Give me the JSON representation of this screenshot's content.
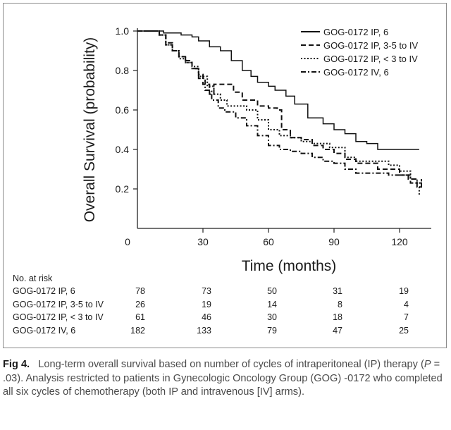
{
  "chart_data": {
    "type": "line",
    "xlabel": "Time (months)",
    "ylabel": "Overall Survival (probability)",
    "xlim": [
      0,
      132
    ],
    "ylim": [
      0,
      1.0
    ],
    "x_ticks": [
      "0",
      "30",
      "60",
      "90",
      "120"
    ],
    "y_ticks": [
      "0.2",
      "0.4",
      "0.6",
      "0.8",
      "1.0"
    ],
    "legend_position": "top-right",
    "series": [
      {
        "name": "GOG-0172 IP, 6",
        "style": "solid",
        "points": [
          [
            0,
            1.0
          ],
          [
            10,
            1.0
          ],
          [
            12,
            0.99
          ],
          [
            18,
            0.99
          ],
          [
            20,
            0.98
          ],
          [
            25,
            0.97
          ],
          [
            28,
            0.95
          ],
          [
            33,
            0.92
          ],
          [
            38,
            0.9
          ],
          [
            43,
            0.85
          ],
          [
            48,
            0.8
          ],
          [
            52,
            0.77
          ],
          [
            55,
            0.74
          ],
          [
            60,
            0.72
          ],
          [
            63,
            0.7
          ],
          [
            68,
            0.67
          ],
          [
            72,
            0.63
          ],
          [
            78,
            0.56
          ],
          [
            85,
            0.53
          ],
          [
            90,
            0.5
          ],
          [
            95,
            0.48
          ],
          [
            100,
            0.44
          ],
          [
            105,
            0.43
          ],
          [
            110,
            0.4
          ],
          [
            120,
            0.4
          ],
          [
            129,
            0.4
          ]
        ]
      },
      {
        "name": "GOG-0172 IP, 3-5 to IV",
        "style": "dashed",
        "points": [
          [
            0,
            1.0
          ],
          [
            10,
            0.98
          ],
          [
            13,
            0.93
          ],
          [
            16,
            0.9
          ],
          [
            19,
            0.87
          ],
          [
            22,
            0.85
          ],
          [
            25,
            0.81
          ],
          [
            28,
            0.78
          ],
          [
            30,
            0.73
          ],
          [
            33,
            0.68
          ],
          [
            35,
            0.73
          ],
          [
            42,
            0.73
          ],
          [
            44,
            0.69
          ],
          [
            48,
            0.65
          ],
          [
            52,
            0.65
          ],
          [
            55,
            0.62
          ],
          [
            60,
            0.61
          ],
          [
            64,
            0.6
          ],
          [
            66,
            0.5
          ],
          [
            70,
            0.46
          ],
          [
            75,
            0.45
          ],
          [
            80,
            0.42
          ],
          [
            85,
            0.4
          ],
          [
            90,
            0.38
          ],
          [
            95,
            0.35
          ],
          [
            100,
            0.33
          ],
          [
            110,
            0.3
          ],
          [
            120,
            0.27
          ],
          [
            124,
            0.25
          ],
          [
            128,
            0.21
          ],
          [
            130,
            0.25
          ]
        ]
      },
      {
        "name": "GOG-0172 IP, < 3 to IV",
        "style": "dotted",
        "points": [
          [
            0,
            1.0
          ],
          [
            10,
            0.98
          ],
          [
            13,
            0.93
          ],
          [
            16,
            0.9
          ],
          [
            19,
            0.86
          ],
          [
            22,
            0.84
          ],
          [
            25,
            0.82
          ],
          [
            28,
            0.77
          ],
          [
            32,
            0.72
          ],
          [
            35,
            0.68
          ],
          [
            38,
            0.65
          ],
          [
            41,
            0.62
          ],
          [
            45,
            0.62
          ],
          [
            50,
            0.6
          ],
          [
            55,
            0.55
          ],
          [
            60,
            0.5
          ],
          [
            65,
            0.47
          ],
          [
            70,
            0.46
          ],
          [
            75,
            0.44
          ],
          [
            80,
            0.43
          ],
          [
            88,
            0.41
          ],
          [
            95,
            0.36
          ],
          [
            100,
            0.34
          ],
          [
            110,
            0.34
          ],
          [
            115,
            0.32
          ],
          [
            120,
            0.29
          ],
          [
            125,
            0.25
          ],
          [
            128,
            0.21
          ],
          [
            129,
            0.17
          ]
        ]
      },
      {
        "name": "GOG-0172 IV, 6",
        "style": "dashdot",
        "points": [
          [
            0,
            1.0
          ],
          [
            10,
            0.98
          ],
          [
            13,
            0.94
          ],
          [
            16,
            0.9
          ],
          [
            19,
            0.87
          ],
          [
            22,
            0.84
          ],
          [
            25,
            0.81
          ],
          [
            28,
            0.76
          ],
          [
            31,
            0.7
          ],
          [
            34,
            0.65
          ],
          [
            37,
            0.61
          ],
          [
            40,
            0.59
          ],
          [
            45,
            0.56
          ],
          [
            50,
            0.52
          ],
          [
            55,
            0.47
          ],
          [
            60,
            0.42
          ],
          [
            65,
            0.4
          ],
          [
            70,
            0.39
          ],
          [
            75,
            0.38
          ],
          [
            80,
            0.36
          ],
          [
            85,
            0.34
          ],
          [
            90,
            0.33
          ],
          [
            95,
            0.3
          ],
          [
            100,
            0.28
          ],
          [
            105,
            0.28
          ],
          [
            110,
            0.28
          ],
          [
            115,
            0.27
          ],
          [
            120,
            0.27
          ],
          [
            125,
            0.23
          ],
          [
            130,
            0.22
          ]
        ]
      }
    ]
  },
  "risk_table": {
    "title": "No. at risk",
    "time_points": [
      "0",
      "30",
      "60",
      "90",
      "120"
    ],
    "rows": [
      {
        "label": "GOG-0172 IP, 6",
        "counts": [
          "78",
          "73",
          "50",
          "31",
          "19"
        ]
      },
      {
        "label": "GOG-0172 IP, 3-5 to IV",
        "counts": [
          "26",
          "19",
          "14",
          "8",
          "4"
        ]
      },
      {
        "label": "GOG-0172 IP, < 3 to IV",
        "counts": [
          "61",
          "46",
          "30",
          "18",
          "7"
        ]
      },
      {
        "label": "GOG-0172 IV, 6",
        "counts": [
          "182",
          "133",
          "79",
          "47",
          "25"
        ]
      }
    ]
  },
  "caption": {
    "label": "Fig 4.",
    "text_before_p": "Long-term overall survival based on number of cycles of intraperitoneal (IP) therapy (",
    "p_symbol": "P",
    "text_after_p": " = .03). Analysis restricted to patients in Gynecologic Oncology Group (GOG) -0172 who completed all six cycles of chemotherapy (both IP and intravenous [IV] arms)."
  }
}
